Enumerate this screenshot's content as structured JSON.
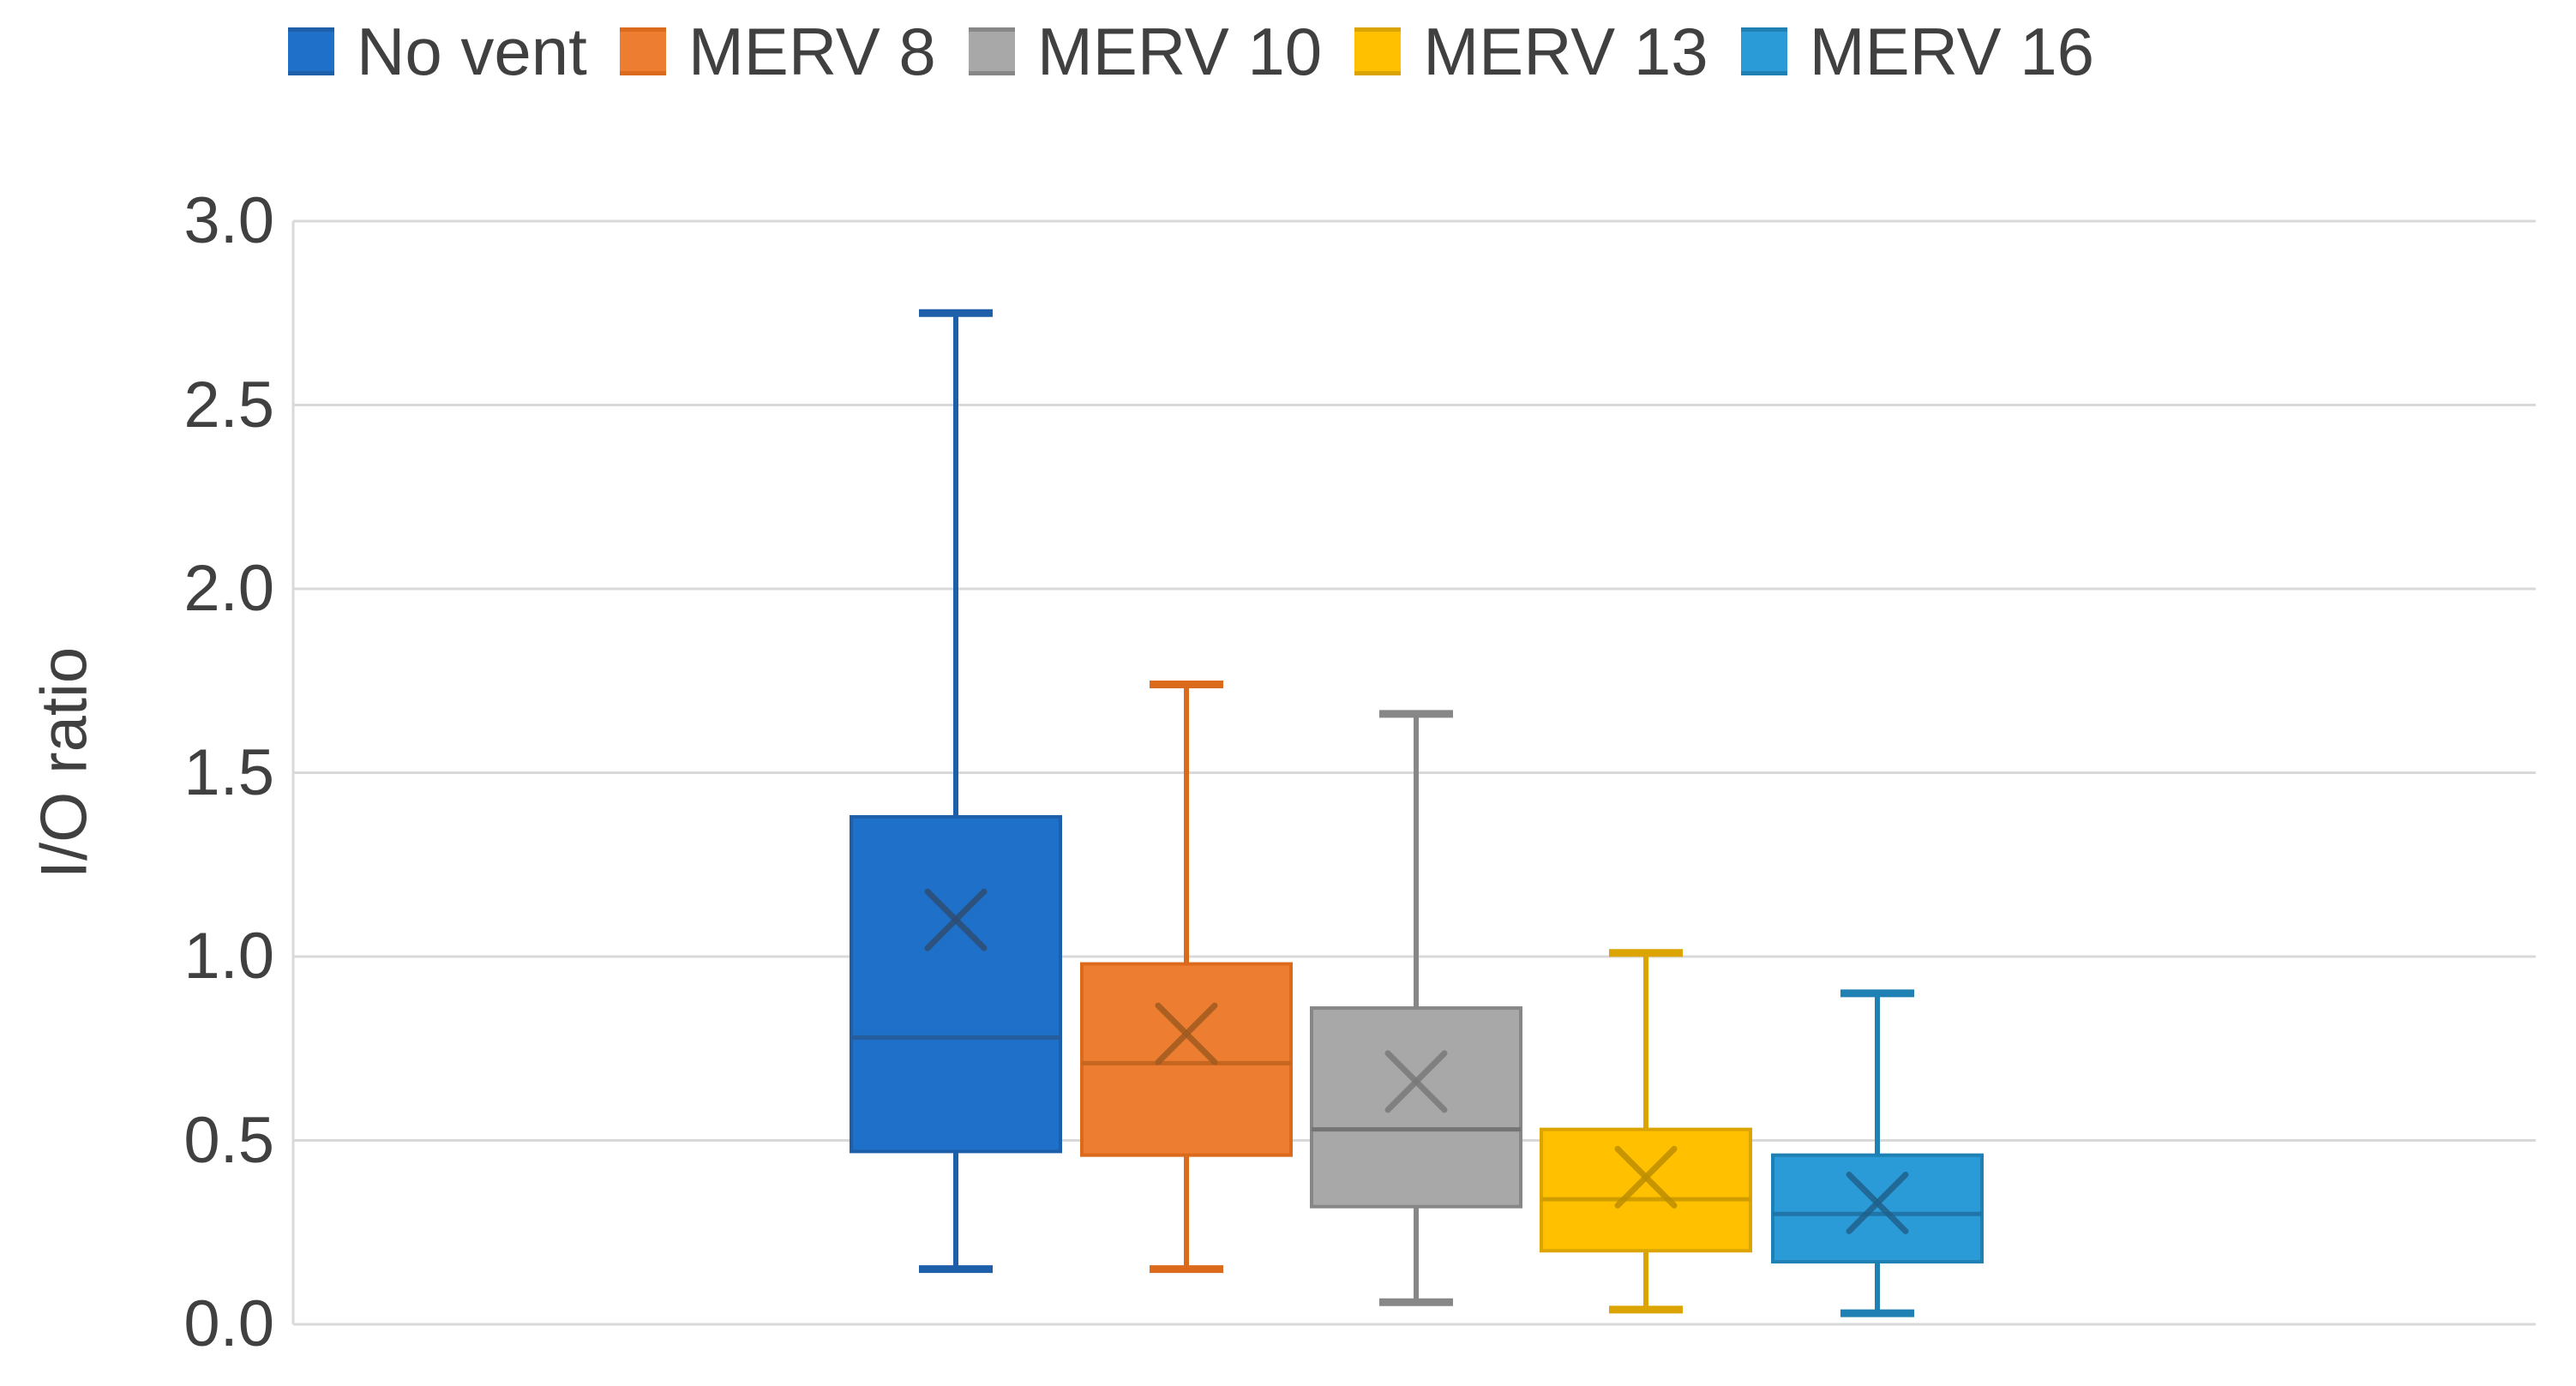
{
  "chart_data": {
    "type": "box",
    "title": "",
    "xlabel": "",
    "ylabel": "I/O ratio",
    "ylim": [
      0.0,
      3.0
    ],
    "ytick_step": 0.5,
    "grid": true,
    "legend_position": "top",
    "series": [
      {
        "name": "No vent",
        "fill": "#1E70C8",
        "line": "#1E5FA9",
        "median_color": "#245C9C",
        "marker_color": "#2F4E74",
        "whisker_low": 0.15,
        "q1": 0.47,
        "median": 0.78,
        "mean": 1.1,
        "q3": 1.38,
        "whisker_high": 2.75
      },
      {
        "name": "MERV 8",
        "fill": "#ED7D31",
        "line": "#DB6A1D",
        "median_color": "#C4661F",
        "marker_color": "#A05B20",
        "whisker_low": 0.15,
        "q1": 0.46,
        "median": 0.71,
        "mean": 0.79,
        "q3": 0.98,
        "whisker_high": 1.74
      },
      {
        "name": "MERV 10",
        "fill": "#A8A8A8",
        "line": "#878787",
        "median_color": "#757575",
        "marker_color": "#7A7A7A",
        "whisker_low": 0.06,
        "q1": 0.32,
        "median": 0.53,
        "mean": 0.66,
        "q3": 0.86,
        "whisker_high": 1.66
      },
      {
        "name": "MERV 13",
        "fill": "#FFC000",
        "line": "#DCA400",
        "median_color": "#D09E00",
        "marker_color": "#BD8E00",
        "whisker_low": 0.04,
        "q1": 0.2,
        "median": 0.34,
        "mean": 0.4,
        "q3": 0.53,
        "whisker_high": 1.01
      },
      {
        "name": "MERV 16",
        "fill": "#2B9BD7",
        "line": "#1F80B4",
        "median_color": "#1F74A8",
        "marker_color": "#20618C",
        "whisker_low": 0.03,
        "q1": 0.17,
        "median": 0.3,
        "mean": 0.33,
        "q3": 0.46,
        "whisker_high": 0.9
      }
    ]
  },
  "axis": {
    "ylabel": "I/O ratio",
    "yticks": [
      "3.0",
      "2.5",
      "2.0",
      "1.5",
      "1.0",
      "0.5",
      "0.0"
    ]
  },
  "colors": {
    "text": "#404040",
    "gridline": "#D9D9D9",
    "axis_line": "#D9D9D9",
    "background": "#FFFFFF"
  }
}
